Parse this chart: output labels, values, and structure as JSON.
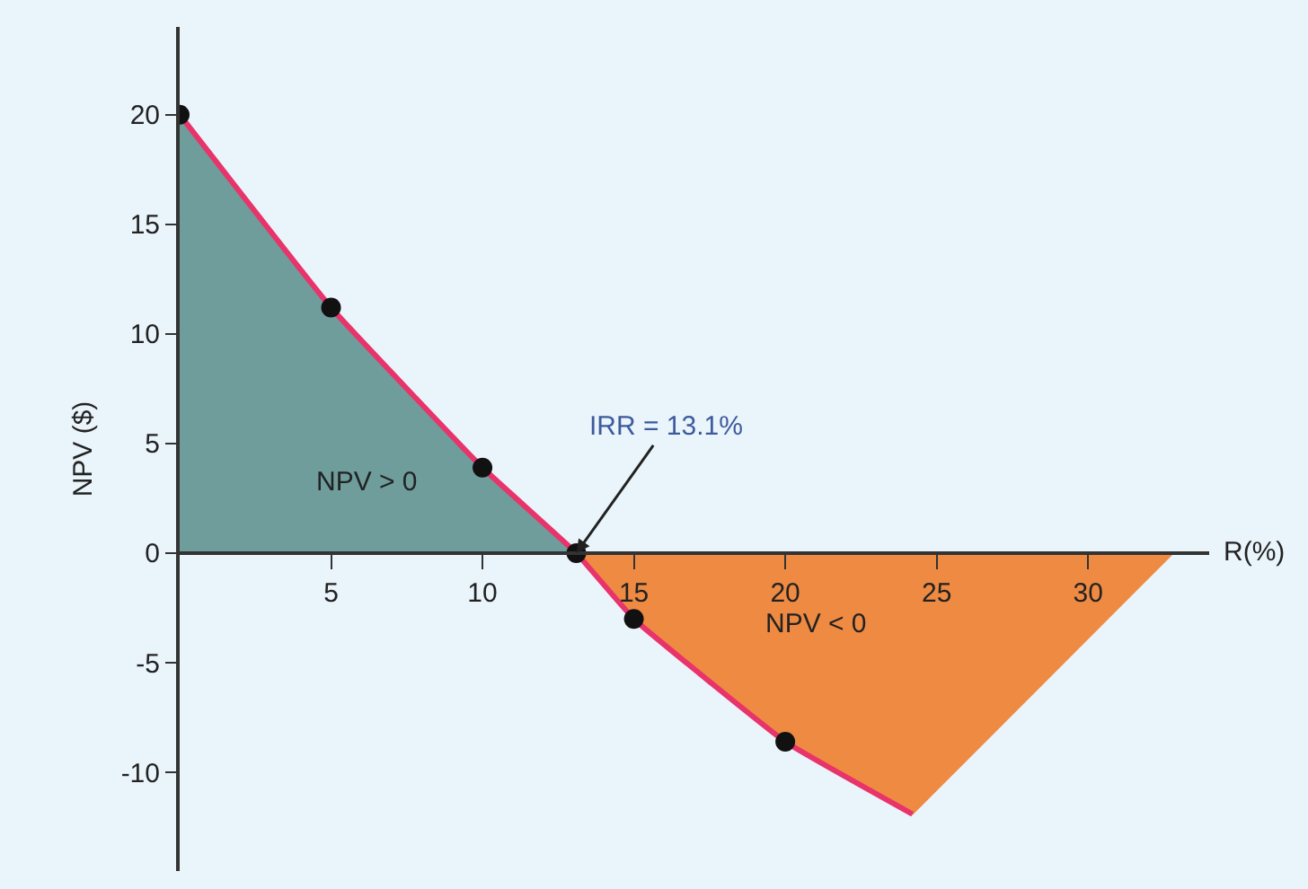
{
  "chart_data": {
    "type": "area",
    "ylabel": "NPV ($)",
    "xlabel": "R(%)",
    "xlim": [
      0,
      34
    ],
    "ylim": [
      -14.5,
      24
    ],
    "xticks": [
      5,
      10,
      15,
      20,
      25,
      30
    ],
    "yticks": [
      -10,
      -5,
      0,
      5,
      10,
      15,
      20
    ],
    "grid": false,
    "legend": false,
    "series": [
      {
        "color": "#6e9d9c",
        "x": [
          0,
          5,
          10,
          13.1
        ],
        "values": [
          20,
          11.2,
          3.9,
          0
        ]
      },
      {
        "type": "area",
        "color": "#ef8a42",
        "x": [
          13.1,
          15,
          20,
          24.2,
          32.8
        ],
        "values": [
          0,
          -3,
          -8.6,
          -11.9,
          0
        ]
      },
      {
        "type": "line",
        "color": "#e8336b",
        "x": [
          0,
          5,
          10,
          13.1,
          15,
          20,
          24.2
        ],
        "values": [
          20,
          11.2,
          3.9,
          0,
          -3,
          -8.6,
          -11.9
        ]
      },
      {
        "type": "scatter",
        "color": "#111111",
        "marker": "circle",
        "x": [
          0,
          5,
          10,
          13.1,
          15,
          20
        ],
        "values": [
          20,
          11.2,
          3.9,
          0,
          -3,
          -8.6
        ]
      }
    ],
    "annotations": [
      {
        "text": "IRR = 13.1%",
        "x": 13.1,
        "y": 0
      },
      "NPV > 0",
      "NPV < 0"
    ]
  }
}
